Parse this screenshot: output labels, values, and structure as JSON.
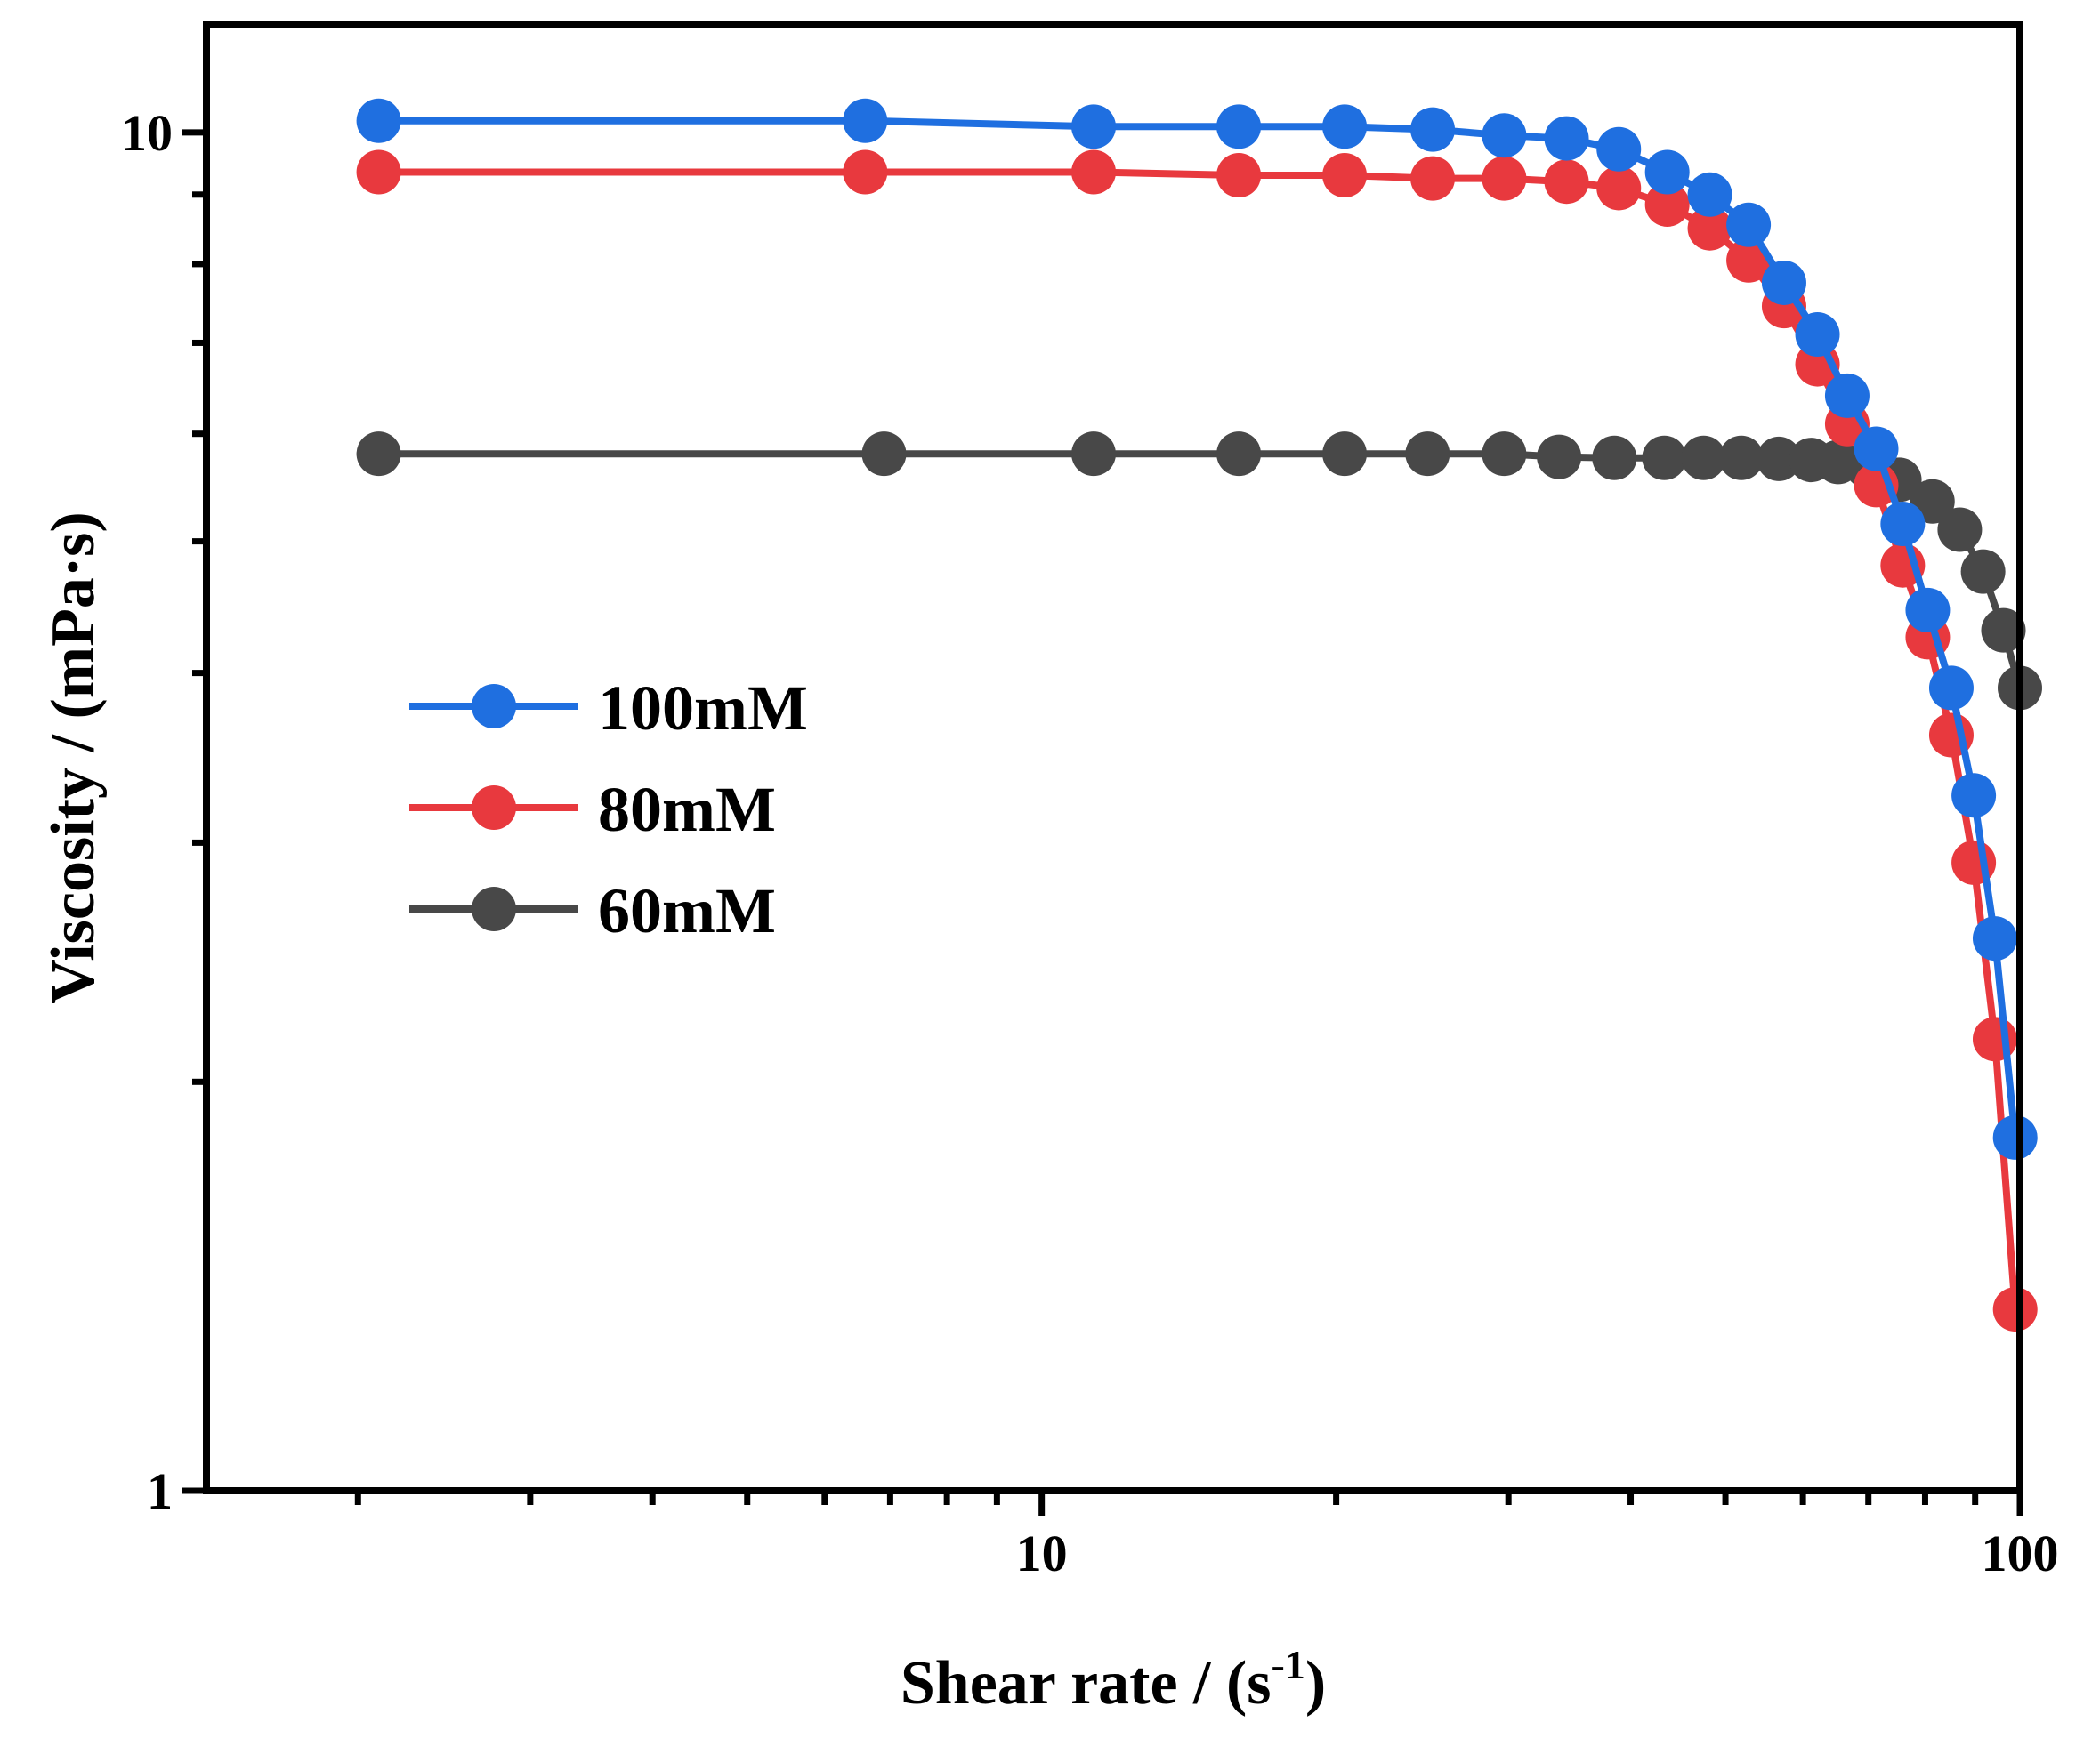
{
  "chart_data": {
    "type": "line",
    "title": "",
    "xlabel": "Shear rate / (s",
    "xlabel_sup": "-1",
    "xlabel_end": ")",
    "ylabel": "Viscosity / (mPa·s)",
    "x_scale": "log",
    "y_scale": "log",
    "xlim": [
      1.4,
      100
    ],
    "ylim": [
      1,
      12
    ],
    "x_ticks": [
      {
        "value": 10,
        "label": "10"
      },
      {
        "value": 100,
        "label": "100"
      }
    ],
    "y_ticks": [
      {
        "value": 1,
        "label": "1"
      },
      {
        "value": 10,
        "label": "10"
      }
    ],
    "grid": false,
    "legend_position": "center-left",
    "series": [
      {
        "name": "100mM",
        "color": "#1f6fe0",
        "x": [
          2.1,
          6.6,
          11.3,
          15.9,
          20.4,
          25.1,
          29.7,
          34.4,
          38.9,
          43.6,
          48.2,
          52.8,
          57.4,
          62.1,
          66.6,
          71.3,
          75.9,
          80.5,
          85.1,
          89.7,
          94.3,
          98.9
        ],
        "y": [
          10.2,
          10.2,
          10.1,
          10.1,
          10.1,
          10.05,
          9.95,
          9.9,
          9.72,
          9.35,
          9.0,
          8.55,
          7.75,
          7.1,
          6.4,
          5.85,
          5.15,
          4.45,
          3.9,
          3.25,
          2.55,
          1.82
        ]
      },
      {
        "name": "80mM",
        "color": "#e8393e",
        "x": [
          2.1,
          6.6,
          11.3,
          15.9,
          20.4,
          25.1,
          29.7,
          34.4,
          38.9,
          43.6,
          48.2,
          52.8,
          57.4,
          62.1,
          66.6,
          71.3,
          75.9,
          80.5,
          85.1,
          89.7,
          94.3,
          98.9
        ],
        "y": [
          9.35,
          9.35,
          9.35,
          9.3,
          9.3,
          9.25,
          9.25,
          9.2,
          9.1,
          8.85,
          8.5,
          8.05,
          7.45,
          6.75,
          6.1,
          5.5,
          4.8,
          4.25,
          3.6,
          2.9,
          2.15,
          1.36
        ]
      },
      {
        "name": "60mM",
        "color": "#484848",
        "x": [
          2.1,
          6.9,
          11.3,
          15.9,
          20.4,
          24.8,
          29.7,
          33.8,
          38.5,
          43.3,
          47.5,
          51.9,
          56.7,
          61.2,
          65.2,
          69.8,
          75.3,
          81.4,
          86.8,
          91.7,
          96.2,
          100
        ],
        "y": [
          5.8,
          5.8,
          5.8,
          5.8,
          5.8,
          5.8,
          5.8,
          5.77,
          5.76,
          5.76,
          5.76,
          5.76,
          5.75,
          5.74,
          5.72,
          5.68,
          5.55,
          5.35,
          5.1,
          4.75,
          4.3,
          3.9
        ]
      }
    ]
  }
}
